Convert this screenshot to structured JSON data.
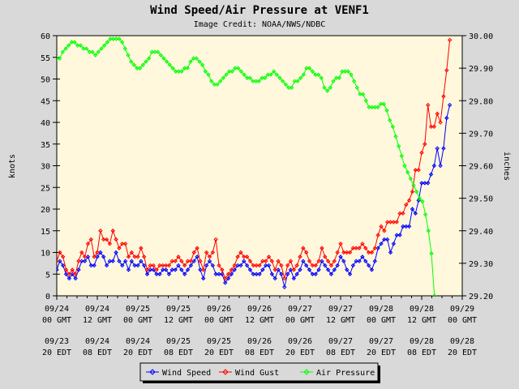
{
  "title": "Wind Speed/Air Pressure at VENF1",
  "credit": "Image Credit: NOAA/NWS/NDBC",
  "chart_data": {
    "type": "line",
    "title": "Wind Speed/Air Pressure at VENF1",
    "ylabel_left": "knots",
    "ylabel_right": "inches",
    "ylim_left": [
      0,
      60
    ],
    "ylim_right": [
      29.2,
      30.0
    ],
    "yticks_left": [
      "0",
      "5",
      "10",
      "15",
      "20",
      "25",
      "30",
      "35",
      "40",
      "45",
      "50",
      "55",
      "60"
    ],
    "yticks_right": [
      "29.20",
      "29.30",
      "29.40",
      "29.50",
      "29.60",
      "29.70",
      "29.80",
      "29.90",
      "30.00"
    ],
    "xlim_hours": [
      0,
      120
    ],
    "xtick_labels_gmt": [
      [
        "09/24",
        "00 GMT"
      ],
      [
        "09/24",
        "12 GMT"
      ],
      [
        "09/25",
        "00 GMT"
      ],
      [
        "09/25",
        "12 GMT"
      ],
      [
        "09/26",
        "00 GMT"
      ],
      [
        "09/26",
        "12 GMT"
      ],
      [
        "09/27",
        "00 GMT"
      ],
      [
        "09/27",
        "12 GMT"
      ],
      [
        "09/28",
        "00 GMT"
      ],
      [
        "09/28",
        "12 GMT"
      ],
      [
        "09/29",
        "00 GMT"
      ]
    ],
    "xtick_labels_edt": [
      [
        "09/23",
        "20 EDT"
      ],
      [
        "09/24",
        "08 EDT"
      ],
      [
        "09/24",
        "20 EDT"
      ],
      [
        "09/25",
        "08 EDT"
      ],
      [
        "09/25",
        "20 EDT"
      ],
      [
        "09/26",
        "08 EDT"
      ],
      [
        "09/26",
        "20 EDT"
      ],
      [
        "09/27",
        "08 EDT"
      ],
      [
        "09/27",
        "20 EDT"
      ],
      [
        "09/28",
        "08 EDT"
      ],
      [
        "09/28",
        "20 EDT"
      ]
    ],
    "grid": false,
    "legend": "bottom",
    "series": [
      {
        "name": "Wind Speed",
        "color": "#0000ff",
        "axis": "left",
        "values": [
          6,
          8,
          7,
          5,
          4,
          5,
          4,
          6,
          8,
          8,
          9,
          7,
          7,
          9,
          10,
          9,
          7,
          8,
          8,
          10,
          8,
          7,
          8,
          6,
          8,
          7,
          7,
          8,
          7,
          5,
          6,
          6,
          5,
          5,
          6,
          6,
          5,
          6,
          6,
          7,
          6,
          5,
          6,
          7,
          8,
          9,
          6,
          4,
          7,
          8,
          7,
          5,
          5,
          5,
          3,
          4,
          5,
          6,
          7,
          7,
          8,
          7,
          6,
          5,
          5,
          5,
          6,
          7,
          7,
          5,
          4,
          6,
          5,
          2,
          5,
          6,
          4,
          5,
          6,
          8,
          7,
          6,
          5,
          5,
          6,
          8,
          7,
          6,
          5,
          6,
          7,
          9,
          8,
          6,
          5,
          7,
          8,
          8,
          9,
          8,
          7,
          6,
          8,
          11,
          12,
          13,
          13,
          10,
          12,
          14,
          14,
          16,
          16,
          16,
          20,
          19,
          22,
          26,
          26,
          26,
          28,
          30,
          34,
          30,
          34,
          41,
          44
        ],
        "x_start": 0,
        "x_step": 0.9231
      },
      {
        "name": "Wind Gust",
        "color": "#ff0000",
        "axis": "left",
        "values": [
          8,
          10,
          9,
          6,
          5,
          6,
          5,
          8,
          10,
          9,
          12,
          13,
          9,
          10,
          15,
          13,
          13,
          12,
          15,
          13,
          11,
          12,
          12,
          9,
          10,
          9,
          9,
          11,
          9,
          6,
          7,
          7,
          6,
          7,
          7,
          7,
          7,
          8,
          8,
          9,
          8,
          7,
          8,
          8,
          10,
          11,
          8,
          6,
          10,
          9,
          10,
          13,
          7,
          6,
          4,
          5,
          6,
          7,
          9,
          10,
          9,
          9,
          8,
          7,
          7,
          7,
          8,
          8,
          9,
          8,
          6,
          8,
          7,
          4,
          7,
          8,
          6,
          7,
          9,
          11,
          10,
          8,
          7,
          7,
          8,
          11,
          9,
          8,
          7,
          8,
          10,
          12,
          10,
          10,
          10,
          11,
          11,
          11,
          12,
          11,
          10,
          10,
          11,
          14,
          16,
          15,
          17,
          17,
          17,
          17,
          19,
          19,
          21,
          22,
          24,
          29,
          29,
          33,
          35,
          44,
          39,
          39,
          42,
          40,
          46,
          52,
          59
        ],
        "x_start": 0,
        "x_step": 0.9231
      },
      {
        "name": "Air Pressure",
        "color": "#00ff00",
        "axis": "right",
        "values": [
          29.93,
          29.93,
          29.95,
          29.96,
          29.97,
          29.98,
          29.98,
          29.97,
          29.97,
          29.96,
          29.96,
          29.95,
          29.95,
          29.94,
          29.95,
          29.96,
          29.97,
          29.98,
          29.99,
          29.99,
          29.99,
          29.99,
          29.98,
          29.96,
          29.94,
          29.92,
          29.91,
          29.9,
          29.9,
          29.91,
          29.92,
          29.93,
          29.95,
          29.95,
          29.95,
          29.94,
          29.93,
          29.92,
          29.91,
          29.9,
          29.89,
          29.89,
          29.89,
          29.9,
          29.9,
          29.92,
          29.93,
          29.93,
          29.92,
          29.91,
          29.89,
          29.88,
          29.86,
          29.85,
          29.85,
          29.86,
          29.87,
          29.88,
          29.89,
          29.89,
          29.9,
          29.9,
          29.89,
          29.88,
          29.87,
          29.87,
          29.86,
          29.86,
          29.86,
          29.87,
          29.87,
          29.88,
          29.88,
          29.89,
          29.88,
          29.87,
          29.86,
          29.85,
          29.84,
          29.84,
          29.86,
          29.86,
          29.87,
          29.88,
          29.9,
          29.9,
          29.89,
          29.88,
          29.88,
          29.87,
          29.84,
          29.83,
          29.84,
          29.86,
          29.87,
          29.87,
          29.89,
          29.89,
          29.89,
          29.88,
          29.86,
          29.84,
          29.82,
          29.82,
          29.8,
          29.78,
          29.78,
          29.78,
          29.78,
          29.79,
          29.79,
          29.77,
          29.74,
          29.72,
          29.69,
          29.66,
          29.63,
          29.6,
          29.58,
          29.56,
          29.54,
          29.52,
          29.5,
          29.49,
          29.45,
          29.4,
          29.33,
          29.2
        ],
        "x_start": 0,
        "x_step": 0.88
      }
    ]
  }
}
